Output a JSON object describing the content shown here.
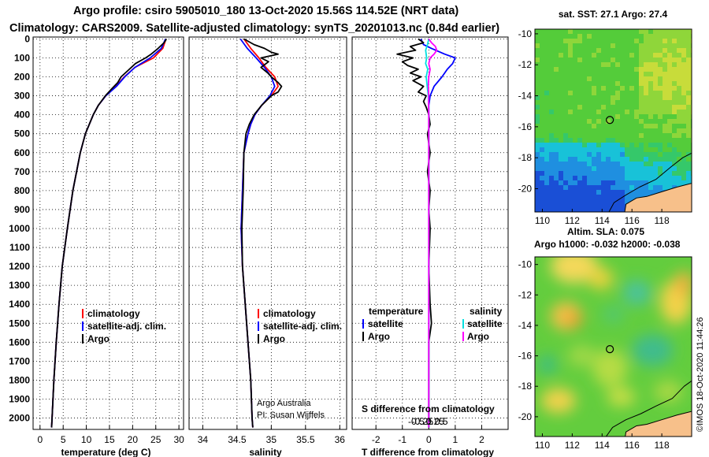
{
  "titles": {
    "line1": "Argo profile: csiro 5905010_180 13-Oct-2020 15.56S 114.52E (NRT data)",
    "line2": "Climatology: CARS2009. Satellite-adjusted climatology: synTS_20201013.nc (0.84d earlier)"
  },
  "colors": {
    "climatology": "#ff0000",
    "satellite": "#0000ff",
    "argo": "#000000",
    "sat_salinity": "#00e0e0",
    "argo_salinity": "#ff00ff"
  },
  "credit": {
    "source": "Argo Australia",
    "pi": "PI: Susan Wijffels"
  },
  "chart_data": [
    {
      "name": "temperature",
      "type": "line",
      "xlabel": "temperature (deg C)",
      "ylim": [
        2060,
        -10
      ],
      "xlim": [
        -1.5,
        31
      ],
      "xticks": [
        0,
        5,
        10,
        15,
        20,
        25,
        30
      ],
      "xtick_labels": [
        "0",
        "5",
        "10",
        "15",
        "20",
        "25",
        "30"
      ],
      "yticks": [
        0,
        100,
        200,
        300,
        400,
        500,
        600,
        700,
        800,
        900,
        1000,
        1100,
        1200,
        1300,
        1400,
        1500,
        1600,
        1700,
        1800,
        1900,
        2000
      ],
      "ytick_labels": [
        "0",
        "100",
        "200",
        "300",
        "400",
        "500",
        "600",
        "700",
        "800",
        "900",
        "1000",
        "1100",
        "1200",
        "1300",
        "1400",
        "1500",
        "1600",
        "1700",
        "1800",
        "1900",
        "2000"
      ],
      "legend": [
        "climatology",
        "satellite-adj. clim.",
        "Argo"
      ],
      "series": [
        {
          "name": "climatology",
          "depth": [
            0,
            50,
            100,
            150,
            200,
            250,
            300,
            350,
            400,
            500,
            600,
            700,
            800,
            900,
            1000,
            1200,
            1400,
            1600,
            1800,
            2000,
            2050
          ],
          "values": [
            27.2,
            26.5,
            24.5,
            20.5,
            18.2,
            16.4,
            14.2,
            12.6,
            11.5,
            9.8,
            8.7,
            7.9,
            7.1,
            6.5,
            5.9,
            4.8,
            4.1,
            3.5,
            3.0,
            2.6,
            2.5
          ]
        },
        {
          "name": "satellite-adj. clim.",
          "depth": [
            0,
            50,
            100,
            150,
            200,
            250,
            300,
            350,
            400,
            500,
            600,
            700,
            800,
            900,
            1000,
            1200,
            1400,
            1600,
            1800,
            2000,
            2050
          ],
          "values": [
            27.1,
            26.2,
            23.8,
            20.5,
            18.3,
            16.5,
            14.2,
            12.6,
            11.5,
            9.8,
            8.7,
            7.9,
            7.1,
            6.5,
            5.9,
            4.8,
            4.1,
            3.5,
            3.0,
            2.6,
            2.5
          ]
        },
        {
          "name": "Argo",
          "depth": [
            0,
            20,
            50,
            80,
            100,
            130,
            160,
            200,
            230,
            260,
            300,
            350,
            400,
            500,
            600,
            700,
            800,
            900,
            1000,
            1200,
            1400,
            1600,
            1800,
            2000,
            2050
          ],
          "values": [
            27.3,
            26.8,
            25.5,
            24.0,
            22.8,
            20.6,
            19.3,
            17.5,
            16.8,
            15.6,
            14.1,
            12.6,
            11.5,
            9.8,
            8.7,
            7.9,
            7.1,
            6.5,
            5.9,
            4.8,
            4.1,
            3.5,
            3.0,
            2.6,
            2.5
          ]
        }
      ]
    },
    {
      "name": "salinity",
      "type": "line",
      "xlabel": "salinity",
      "ylim": [
        2060,
        -10
      ],
      "xlim": [
        33.8,
        36.1
      ],
      "xticks": [
        34,
        34.5,
        35,
        35.5,
        36
      ],
      "xtick_labels": [
        "34",
        "34.5",
        "35",
        "35.5",
        "36"
      ],
      "legend": [
        "climatology",
        "satellite-adj. clim.",
        "Argo"
      ],
      "series": [
        {
          "name": "climatology",
          "depth": [
            0,
            50,
            100,
            150,
            200,
            250,
            300,
            350,
            400,
            450,
            500,
            600,
            800,
            1000,
            1200,
            1400,
            1600,
            1800,
            2000,
            2050
          ],
          "values": [
            34.6,
            34.7,
            34.82,
            34.92,
            35.05,
            35.1,
            35.0,
            34.86,
            34.76,
            34.7,
            34.66,
            34.6,
            34.58,
            34.56,
            34.58,
            34.62,
            34.66,
            34.7,
            34.72,
            34.73
          ]
        },
        {
          "name": "satellite-adj. clim.",
          "depth": [
            0,
            50,
            100,
            150,
            200,
            250,
            300,
            350,
            400,
            450,
            500,
            600,
            800,
            1000,
            1200,
            1400,
            1600,
            1800,
            2000,
            2050
          ],
          "values": [
            34.55,
            34.65,
            34.78,
            34.9,
            35.0,
            35.05,
            34.98,
            34.86,
            34.76,
            34.7,
            34.66,
            34.6,
            34.58,
            34.56,
            34.58,
            34.62,
            34.66,
            34.7,
            34.72,
            34.73
          ]
        },
        {
          "name": "Argo",
          "depth": [
            0,
            30,
            50,
            70,
            80,
            100,
            120,
            150,
            180,
            200,
            230,
            250,
            280,
            300,
            350,
            400,
            450,
            500,
            600,
            800,
            1000,
            1200,
            1400,
            1600,
            1800,
            2000,
            2050
          ],
          "values": [
            34.6,
            34.75,
            34.9,
            35.0,
            35.1,
            34.85,
            34.96,
            34.85,
            34.95,
            35.0,
            35.1,
            35.15,
            35.1,
            35.0,
            34.86,
            34.75,
            34.68,
            34.63,
            34.6,
            34.59,
            34.57,
            34.58,
            34.62,
            34.66,
            34.7,
            34.72,
            34.73
          ]
        }
      ]
    },
    {
      "name": "difference",
      "type": "line",
      "xlabel": "T difference from climatology",
      "secondary_axis_label": "S difference from climatology",
      "ylim": [
        2060,
        -10
      ],
      "xlim": [
        -2.9,
        3.0
      ],
      "xticks": [
        -2,
        -1,
        0,
        1,
        2
      ],
      "xtick_labels": [
        "-2",
        "-1",
        "0",
        "1",
        "2"
      ],
      "s_xticks": [
        -0.5,
        -0.25,
        0,
        0.25,
        0.5
      ],
      "s_xtick_labels": [
        "-0.5",
        "-0.25",
        "0",
        "0.25",
        "0.5"
      ],
      "legend_temperature": {
        "title": "temperature",
        "items": [
          "satellite",
          "Argo"
        ]
      },
      "legend_salinity": {
        "title": "salinity",
        "items": [
          "satellite",
          "Argo"
        ]
      },
      "series": [
        {
          "name": "T satellite",
          "depth": [
            0,
            30,
            50,
            80,
            100,
            130,
            160,
            200,
            250,
            300,
            350,
            400,
            500,
            800,
            1200,
            1600,
            2050
          ],
          "values": [
            -0.3,
            -0.2,
            0.1,
            0.6,
            1.0,
            0.9,
            0.7,
            0.5,
            0.2,
            0.05,
            0.0,
            0.0,
            0.0,
            0.0,
            0.0,
            0.0,
            0.0
          ]
        },
        {
          "name": "T Argo",
          "depth": [
            0,
            20,
            40,
            60,
            80,
            100,
            120,
            140,
            160,
            180,
            200,
            220,
            250,
            280,
            300,
            330,
            360,
            400,
            450,
            500,
            600,
            700,
            800,
            900,
            1000,
            1200,
            1400,
            1500,
            1600,
            1800,
            2050
          ],
          "values": [
            -0.4,
            -0.2,
            -0.7,
            -0.5,
            -1.2,
            -0.6,
            -1.0,
            -0.8,
            -0.4,
            -0.7,
            -0.3,
            -0.6,
            -0.2,
            -0.4,
            -0.1,
            -0.2,
            -0.1,
            0.0,
            0.05,
            -0.05,
            0.05,
            -0.05,
            0.05,
            0.0,
            0.05,
            0.0,
            0.05,
            0.1,
            0.0,
            0.0,
            0.0
          ]
        },
        {
          "name": "S satellite",
          "depth": [
            0,
            30,
            60,
            100,
            130,
            160,
            200,
            250,
            300,
            400,
            500,
            600,
            800,
            1000,
            1200,
            1600,
            2050
          ],
          "values": [
            0.0,
            -0.05,
            -0.12,
            -0.08,
            -0.12,
            -0.04,
            -0.1,
            -0.06,
            -0.02,
            0.0,
            0.0,
            0.0,
            0.0,
            0.0,
            0.0,
            0.0,
            0.0
          ]
        },
        {
          "name": "S Argo",
          "depth": [
            0,
            20,
            40,
            60,
            80,
            100,
            130,
            160,
            200,
            250,
            300,
            350,
            400,
            500,
            700,
            1000,
            1400,
            1600,
            2050
          ],
          "values": [
            0.0,
            0.1,
            0.25,
            0.3,
            0.2,
            0.05,
            0.0,
            0.05,
            0.0,
            -0.02,
            0.0,
            -0.01,
            0.0,
            0.0,
            0.0,
            0.0,
            0.0,
            0.0,
            0.0
          ]
        }
      ]
    },
    {
      "name": "sst_map",
      "type": "heatmap",
      "title": "sat. SST: 27.1 Argo: 27.4",
      "xlim": [
        109.5,
        120
      ],
      "ylim": [
        -21.5,
        -9.7
      ],
      "xticks": [
        110,
        112,
        114,
        116,
        118
      ],
      "xtick_labels": [
        "110",
        "112",
        "114",
        "116",
        "118"
      ],
      "yticks": [
        -10,
        -12,
        -14,
        -16,
        -18,
        -20
      ],
      "ytick_labels": [
        "-10",
        "-12",
        "-14",
        "-16",
        "-18",
        "-20"
      ],
      "float_position": {
        "lon": 114.52,
        "lat": -15.56
      }
    },
    {
      "name": "sla_map",
      "type": "heatmap",
      "title": "Altim. SLA: 0.075",
      "subtitle": "Argo h1000: -0.032 h2000: -0.038",
      "xlim": [
        109.5,
        120
      ],
      "ylim": [
        -21.3,
        -9.5
      ],
      "xticks": [
        110,
        112,
        114,
        116,
        118
      ],
      "xtick_labels": [
        "110",
        "112",
        "114",
        "116",
        "118"
      ],
      "yticks": [
        -10,
        -12,
        -14,
        -16,
        -18,
        -20
      ],
      "ytick_labels": [
        "-10",
        "-12",
        "-14",
        "-16",
        "-18",
        "-20"
      ],
      "float_position": {
        "lon": 114.52,
        "lat": -15.56
      },
      "side_label": "©IMOS 18-Oct-2020 11:44:26"
    }
  ]
}
